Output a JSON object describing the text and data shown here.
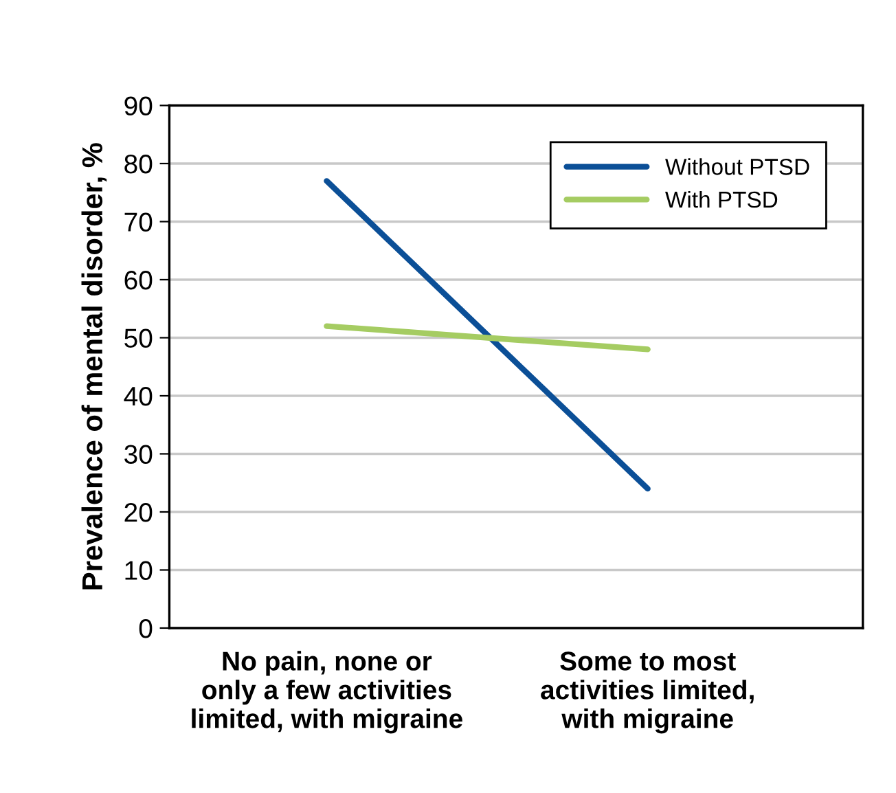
{
  "chart_data": {
    "type": "line",
    "ylabel": "Prevalence of mental disorder, %",
    "categories": [
      "No pain, none or\nonly a few activities\nlimited, with migraine",
      "Some to most\nactivities limited,\nwith migraine"
    ],
    "series": [
      {
        "name": "Without PTSD",
        "color": "#0b4f97",
        "values": [
          77,
          24
        ]
      },
      {
        "name": "With PTSD",
        "color": "#a5cc62",
        "values": [
          52,
          48
        ]
      }
    ],
    "ylim": [
      0,
      90
    ],
    "yticks": [
      0,
      10,
      20,
      30,
      40,
      50,
      60,
      70,
      80,
      90
    ],
    "grid": "y",
    "legend": "top right",
    "marker": "none",
    "line_style": "solid"
  }
}
